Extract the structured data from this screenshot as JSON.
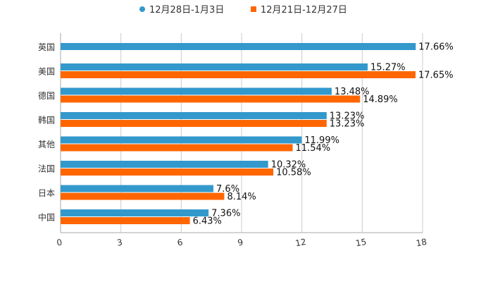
{
  "chart_data": {
    "type": "bar",
    "orientation": "horizontal",
    "categories": [
      "英国",
      "美国",
      "德国",
      "韩国",
      "其他",
      "法国",
      "日本",
      "中国"
    ],
    "series": [
      {
        "name": "12月28日-1月3日",
        "color": "#3399cc",
        "values": [
          17.66,
          15.27,
          13.48,
          13.23,
          11.99,
          10.32,
          7.6,
          7.36
        ],
        "labels": [
          "17.66%",
          "15.27%",
          "13.48%",
          "13.23%",
          "11.99%",
          "10.32%",
          "7.6%",
          "7.36%"
        ]
      },
      {
        "name": "12月21日-12月27日",
        "color": "#ff6600",
        "values": [
          null,
          17.65,
          14.89,
          13.23,
          11.54,
          10.58,
          8.14,
          6.43
        ],
        "labels": [
          null,
          "17.65%",
          "14.89%",
          "13.23%",
          "11.54%",
          "10.58%",
          "8.14%",
          "6.43%"
        ]
      }
    ],
    "xlim": [
      0,
      18
    ],
    "xticks": [
      0,
      3,
      6,
      9,
      12,
      15,
      18
    ],
    "grid": true,
    "legend_position": "top-center"
  }
}
